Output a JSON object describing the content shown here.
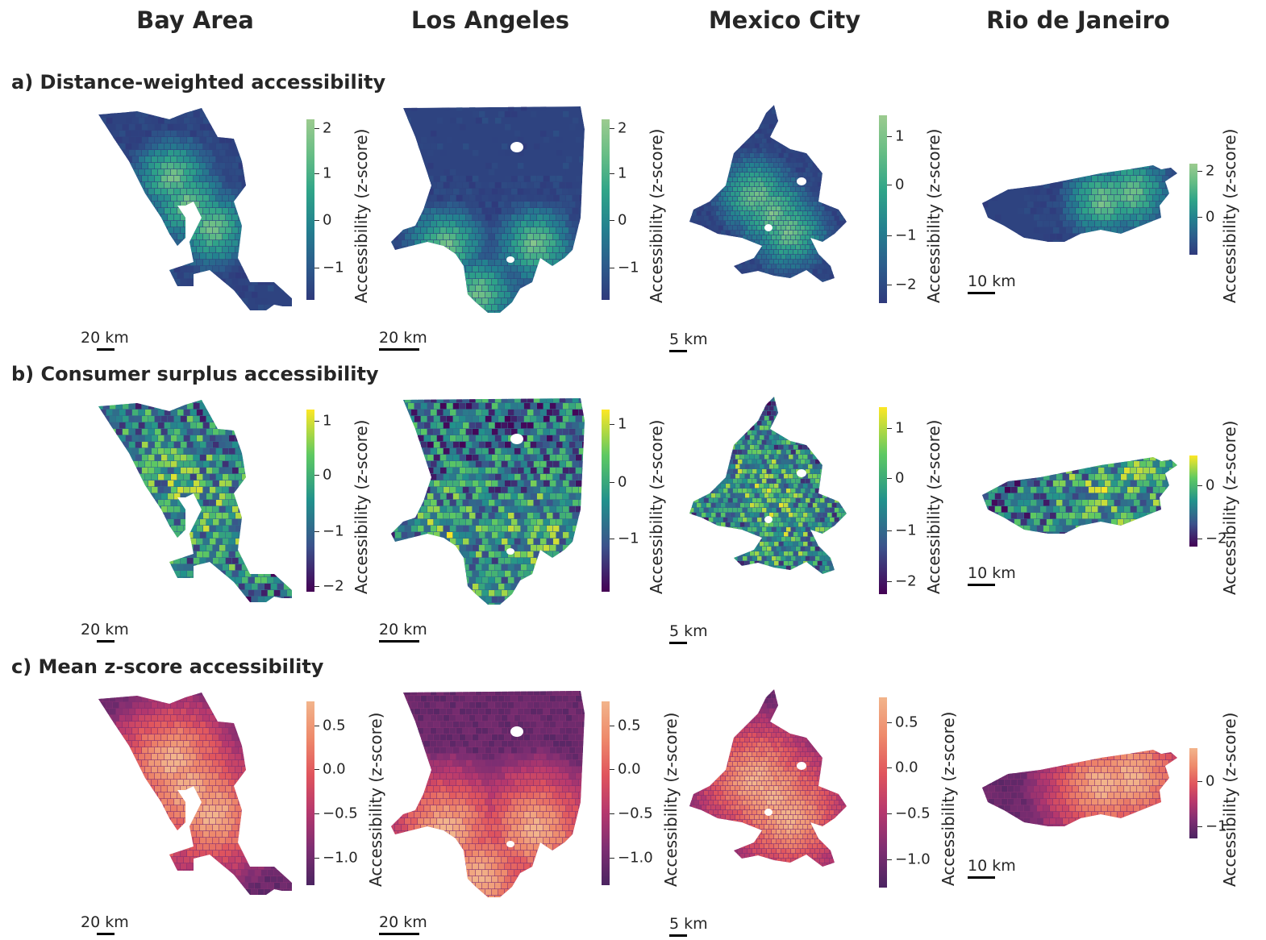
{
  "columns": [
    "Bay Area",
    "Los Angeles",
    "Mexico City",
    "Rio de Janeiro"
  ],
  "rows": [
    {
      "label": "a)  Distance-weighted accessibility",
      "cmap": "viridis-half"
    },
    {
      "label": "b)  Consumer surplus accessibility",
      "cmap": "viridis"
    },
    {
      "label": "c)  Mean z-score accessibility",
      "cmap": "flare"
    }
  ],
  "colorbar_label": "Accessibility (z-score)",
  "colormaps": {
    "viridis-half": [
      "#2f3a7c",
      "#2c5d8c",
      "#23818f",
      "#2fa488",
      "#66bd85",
      "#9ccb8f"
    ],
    "viridis": [
      "#440154",
      "#3b528b",
      "#21918c",
      "#5ec962",
      "#fde725"
    ],
    "flare": [
      "#4b2461",
      "#7e2e72",
      "#b6386d",
      "#e0555d",
      "#ee8a6b",
      "#f2b48b"
    ]
  },
  "scalebars": [
    "20 km",
    "20 km",
    "5 km",
    "10 km"
  ],
  "colorbars": [
    [
      {
        "ticks": [
          "2",
          "1",
          "0",
          "−1"
        ]
      },
      {
        "ticks": [
          "2",
          "1",
          "0",
          "−1"
        ]
      },
      {
        "ticks": [
          "1",
          "0",
          "−1",
          "−2"
        ]
      },
      {
        "ticks": [
          "2",
          "0"
        ]
      }
    ],
    [
      {
        "ticks": [
          "1",
          "0",
          "−1",
          "−2"
        ]
      },
      {
        "ticks": [
          "1",
          "0",
          "−1"
        ]
      },
      {
        "ticks": [
          "1",
          "0",
          "−1",
          "−2"
        ]
      },
      {
        "ticks": [
          "0",
          "−2"
        ]
      }
    ],
    [
      {
        "ticks": [
          "0.5",
          "0.0",
          "−0.5",
          "−1.0"
        ]
      },
      {
        "ticks": [
          "0.5",
          "0.0",
          "−0.5",
          "−1.0"
        ]
      },
      {
        "ticks": [
          "0.5",
          "0.0",
          "−0.5",
          "−1.0"
        ]
      },
      {
        "ticks": [
          "0",
          "−1"
        ]
      }
    ]
  ]
}
